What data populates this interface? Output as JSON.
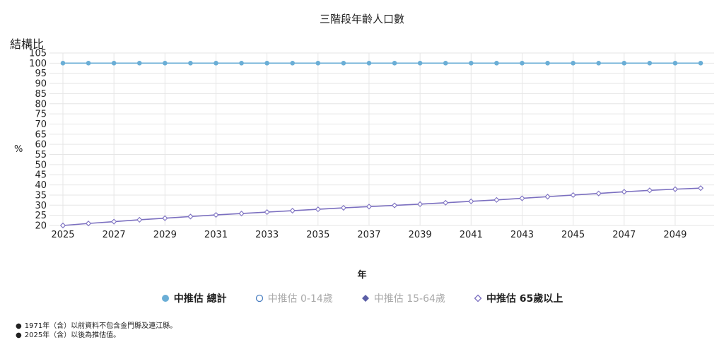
{
  "chart_data": {
    "type": "line",
    "title": "三階段年齡人口數",
    "xlabel": "年",
    "ylabel": "結構比",
    "yunit": "%",
    "ylim": [
      20,
      105
    ],
    "yticks": [
      20,
      25,
      30,
      35,
      40,
      45,
      50,
      55,
      60,
      65,
      70,
      75,
      80,
      85,
      90,
      95,
      100,
      105
    ],
    "xticks": [
      "2025",
      "2027",
      "2029",
      "2031",
      "2033",
      "2035",
      "2037",
      "2039",
      "2041",
      "2043",
      "2045",
      "2047",
      "2049"
    ],
    "x": [
      2025,
      2026,
      2027,
      2028,
      2029,
      2030,
      2031,
      2032,
      2033,
      2034,
      2035,
      2036,
      2037,
      2038,
      2039,
      2040,
      2041,
      2042,
      2043,
      2044,
      2045,
      2046,
      2047,
      2048,
      2049,
      2050
    ],
    "grid": true,
    "legend_position": "bottom",
    "series": [
      {
        "name": "中推估 總計",
        "visible": true,
        "color": "#6aaed6",
        "marker": "circle",
        "values": [
          100,
          100,
          100,
          100,
          100,
          100,
          100,
          100,
          100,
          100,
          100,
          100,
          100,
          100,
          100,
          100,
          100,
          100,
          100,
          100,
          100,
          100,
          100,
          100,
          100,
          100
        ]
      },
      {
        "name": "中推估 0-14歲",
        "visible": false,
        "color": "#4a7fc1",
        "marker": "circle-open",
        "values": []
      },
      {
        "name": "中推估 15-64歲",
        "visible": false,
        "color": "#5b5ea6",
        "marker": "diamond",
        "values": []
      },
      {
        "name": "中推估 65歲以上",
        "visible": true,
        "color": "#7b6fc0",
        "marker": "diamond-open",
        "values": [
          20.0,
          21.0,
          21.9,
          22.8,
          23.6,
          24.4,
          25.2,
          25.9,
          26.6,
          27.3,
          28.0,
          28.7,
          29.3,
          29.9,
          30.5,
          31.2,
          31.9,
          32.6,
          33.4,
          34.2,
          35.0,
          35.8,
          36.6,
          37.3,
          37.9,
          38.4
        ]
      }
    ]
  },
  "legend": [
    {
      "label": "中推估 總計",
      "state": "on"
    },
    {
      "label": "中推估 0-14歲",
      "state": "off"
    },
    {
      "label": "中推估 15-64歲",
      "state": "off"
    },
    {
      "label": "中推估 65歲以上",
      "state": "on"
    }
  ],
  "notes": [
    "1971年（含）以前資料不包含金門縣及連江縣。",
    "2025年（含）以後為推估值。"
  ]
}
